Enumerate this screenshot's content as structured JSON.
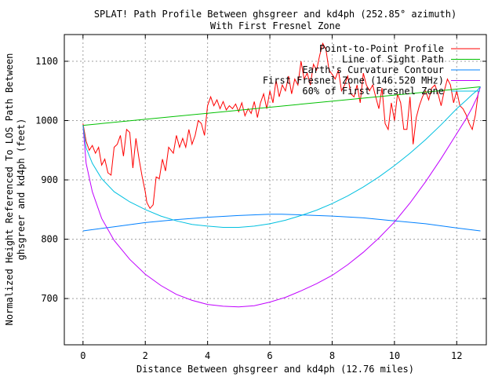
{
  "chart_data": {
    "type": "line",
    "title_lines": [
      "SPLAT! Path Profile Between ghsgreer and kd4ph (252.85° azimuth)",
      "With First Fresnel Zone"
    ],
    "xlabel": "Distance Between ghsgreer and kd4ph (12.76 miles)",
    "ylabel_lines": [
      "Normalized Height Referenced To LOS Path Between",
      "ghsgreer and kd4ph (feet)"
    ],
    "xlim": [
      -0.6,
      12.95
    ],
    "ylim": [
      622,
      1145
    ],
    "x_ticks": [
      0,
      2,
      4,
      6,
      8,
      10,
      12
    ],
    "y_ticks": [
      700,
      800,
      900,
      1000,
      1100
    ],
    "grid": true,
    "legend_position": "top-right",
    "series": [
      {
        "name": "Point-to-Point Profile",
        "color": "#ff0000",
        "x": [
          0,
          0.1,
          0.2,
          0.3,
          0.4,
          0.5,
          0.6,
          0.7,
          0.8,
          0.9,
          1.0,
          1.1,
          1.2,
          1.3,
          1.4,
          1.5,
          1.6,
          1.7,
          1.8,
          1.9,
          2.0,
          2.05,
          2.15,
          2.25,
          2.35,
          2.45,
          2.55,
          2.65,
          2.75,
          2.9,
          3.0,
          3.1,
          3.2,
          3.3,
          3.4,
          3.5,
          3.6,
          3.7,
          3.8,
          3.9,
          4.0,
          4.1,
          4.2,
          4.3,
          4.4,
          4.5,
          4.6,
          4.7,
          4.8,
          4.9,
          5.0,
          5.1,
          5.2,
          5.3,
          5.4,
          5.5,
          5.6,
          5.7,
          5.8,
          5.9,
          6.0,
          6.1,
          6.2,
          6.3,
          6.4,
          6.5,
          6.6,
          6.7,
          6.8,
          6.9,
          7.0,
          7.1,
          7.2,
          7.3,
          7.4,
          7.5,
          7.6,
          7.7,
          7.8,
          7.9,
          8.0,
          8.1,
          8.2,
          8.3,
          8.4,
          8.5,
          8.6,
          8.7,
          8.8,
          8.9,
          9.0,
          9.1,
          9.2,
          9.3,
          9.4,
          9.5,
          9.6,
          9.7,
          9.8,
          9.9,
          10.0,
          10.1,
          10.2,
          10.3,
          10.4,
          10.5,
          10.6,
          10.7,
          10.8,
          10.9,
          11.0,
          11.1,
          11.2,
          11.3,
          11.4,
          11.5,
          11.6,
          11.7,
          11.8,
          11.9,
          12.0,
          12.1,
          12.2,
          12.3,
          12.4,
          12.5,
          12.6,
          12.7
        ],
        "y": [
          995,
          965,
          950,
          958,
          945,
          955,
          925,
          935,
          912,
          908,
          955,
          960,
          975,
          940,
          985,
          980,
          920,
          970,
          935,
          905,
          880,
          862,
          852,
          858,
          905,
          902,
          935,
          915,
          955,
          945,
          975,
          955,
          970,
          955,
          985,
          960,
          975,
          1000,
          995,
          975,
          1025,
          1040,
          1025,
          1035,
          1020,
          1032,
          1018,
          1025,
          1020,
          1028,
          1015,
          1030,
          1008,
          1020,
          1012,
          1032,
          1005,
          1030,
          1045,
          1020,
          1050,
          1030,
          1068,
          1040,
          1060,
          1050,
          1075,
          1045,
          1070,
          1060,
          1100,
          1070,
          1080,
          1060,
          1095,
          1085,
          1110,
          1130,
          1120,
          1085,
          1078,
          1070,
          1085,
          1050,
          1060,
          1075,
          1045,
          1040,
          1060,
          1030,
          1080,
          1060,
          1050,
          1060,
          1040,
          1020,
          1055,
          995,
          985,
          1030,
          1000,
          1045,
          1030,
          985,
          985,
          1040,
          960,
          1005,
          1025,
          1040,
          1050,
          1035,
          1055,
          1060,
          1045,
          1025,
          1050,
          1070,
          1060,
          1030,
          1050,
          1025,
          1020,
          1010,
          995,
          985,
          1010,
          1050
        ]
      },
      {
        "name": "Line of Sight Path",
        "color": "#00c000",
        "x": [
          0,
          12.76
        ],
        "y": [
          992,
          1057
        ]
      },
      {
        "name": "Earth's Curvature Contour",
        "color": "#0080ff",
        "x": [
          0,
          1,
          2,
          3,
          4,
          5,
          6,
          6.38,
          7,
          8,
          9,
          10,
          11,
          12,
          12.76
        ],
        "y": [
          814,
          821,
          828,
          833,
          837,
          840,
          842,
          842,
          841,
          839,
          836,
          831,
          826,
          819,
          814
        ]
      },
      {
        "name": "First Fresnel Zone (146.520 MHz)",
        "color": "#c000ff",
        "x": [
          0,
          0.1,
          0.3,
          0.6,
          1.0,
          1.5,
          2.0,
          2.5,
          3.0,
          3.5,
          4.0,
          4.5,
          5.0,
          5.5,
          6.0,
          6.5,
          7.0,
          7.5,
          8.0,
          8.5,
          9.0,
          9.5,
          10.0,
          10.5,
          11.0,
          11.5,
          12.0,
          12.3,
          12.5,
          12.66,
          12.76
        ],
        "y": [
          992,
          928,
          880,
          835,
          798,
          766,
          741,
          722,
          707,
          697,
          690,
          687,
          686,
          688,
          694,
          702,
          713,
          725,
          739,
          757,
          778,
          802,
          829,
          861,
          897,
          936,
          978,
          1003,
          1022,
          1040,
          1057
        ]
      },
      {
        "name": "60% of First Fresnel Zone",
        "color": "#00c0e0",
        "x": [
          0,
          0.1,
          0.3,
          0.6,
          1.0,
          1.5,
          2.0,
          2.5,
          3.0,
          3.5,
          4.0,
          4.5,
          5.0,
          5.5,
          6.0,
          6.5,
          7.0,
          7.5,
          8.0,
          8.5,
          9.0,
          9.5,
          10.0,
          10.5,
          11.0,
          11.5,
          12.0,
          12.3,
          12.5,
          12.66,
          12.76
        ],
        "y": [
          992,
          954,
          928,
          902,
          880,
          863,
          850,
          839,
          831,
          825,
          822,
          820,
          820,
          822,
          826,
          832,
          840,
          849,
          860,
          873,
          888,
          905,
          924,
          945,
          968,
          993,
          1020,
          1034,
          1044,
          1051,
          1057
        ]
      }
    ]
  }
}
